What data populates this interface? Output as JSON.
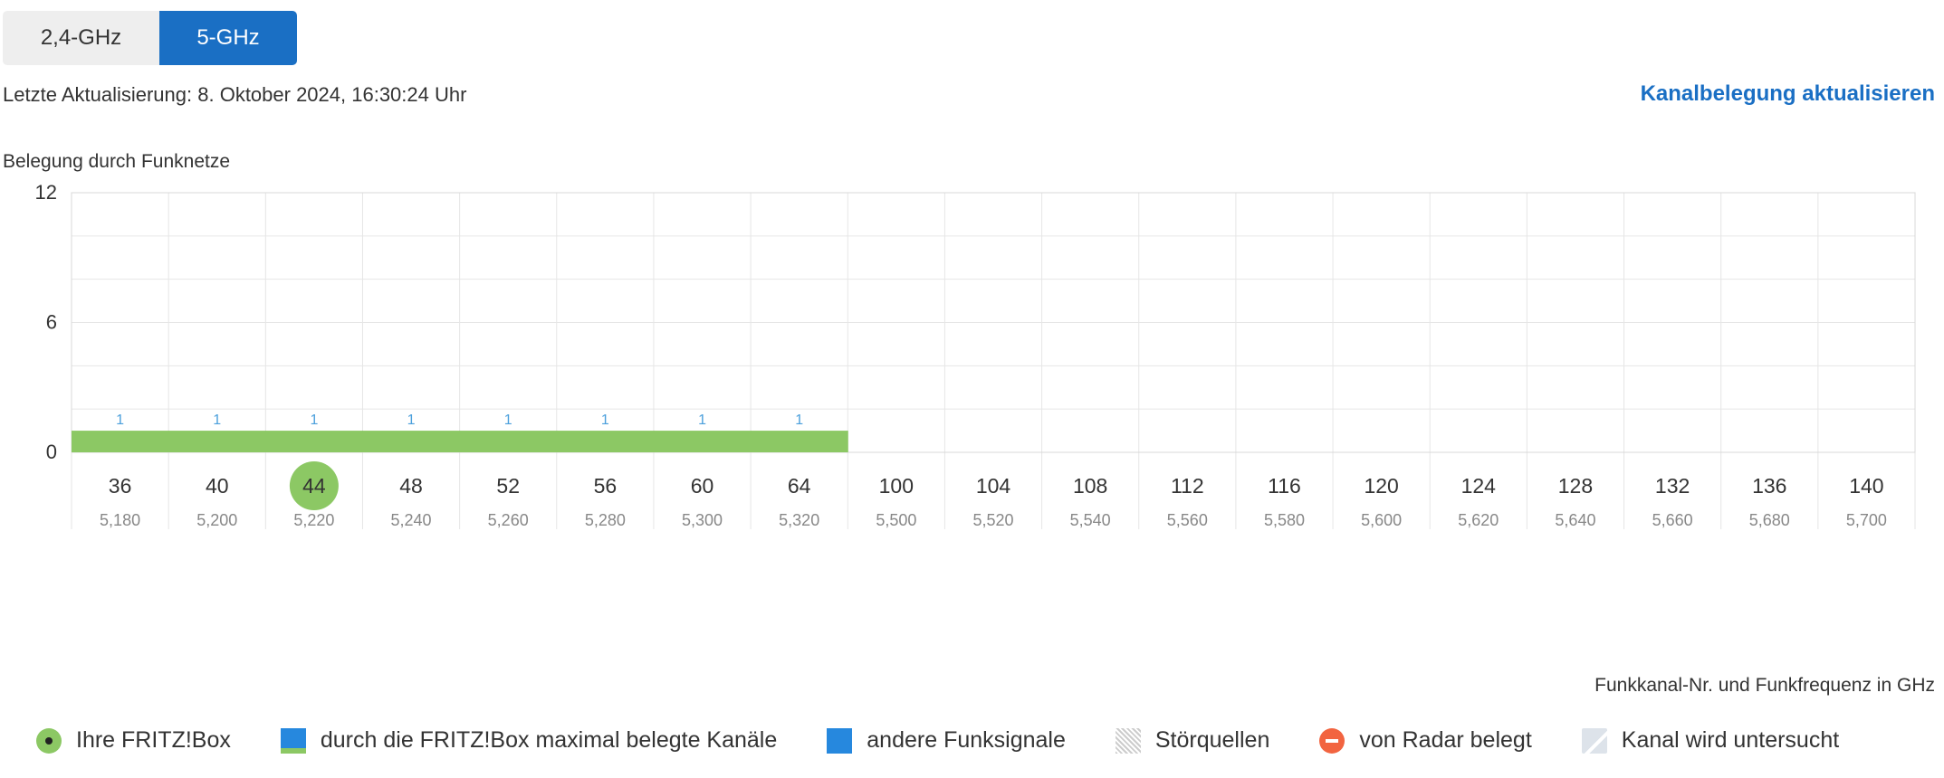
{
  "tabs": [
    {
      "label": "2,4-GHz",
      "active": false
    },
    {
      "label": "5-GHz",
      "active": true
    }
  ],
  "last_update": "Letzte Aktualisierung: 8. Oktober 2024, 16:30:24 Uhr",
  "refresh_link": "Kanalbelegung aktualisieren",
  "chart_title": "Belegung durch Funknetze",
  "axis_caption": "Funkkanal-Nr. und Funkfrequenz in GHz",
  "chart_data": {
    "type": "bar",
    "ylim": [
      0,
      12
    ],
    "yticks": [
      "12",
      "6",
      "0"
    ],
    "grid": true,
    "channels": [
      "36",
      "40",
      "44",
      "48",
      "52",
      "56",
      "60",
      "64",
      "100",
      "104",
      "108",
      "112",
      "116",
      "120",
      "124",
      "128",
      "132",
      "136",
      "140"
    ],
    "frequencies": [
      "5,180",
      "5,200",
      "5,220",
      "5,240",
      "5,260",
      "5,280",
      "5,300",
      "5,320",
      "5,500",
      "5,520",
      "5,540",
      "5,560",
      "5,580",
      "5,600",
      "5,620",
      "5,640",
      "5,660",
      "5,680",
      "5,700"
    ],
    "fritzbox_occupied": [
      1,
      1,
      1,
      1,
      1,
      1,
      1,
      1,
      0,
      0,
      0,
      0,
      0,
      0,
      0,
      0,
      0,
      0,
      0
    ],
    "value_labels": [
      "1",
      "1",
      "1",
      "1",
      "1",
      "1",
      "1",
      "1",
      "",
      "",
      "",
      "",
      "",
      "",
      "",
      "",
      "",
      "",
      ""
    ],
    "fritzbox_channel": "44",
    "colors": {
      "fritzbox": "#8cc864",
      "other": "#2688de",
      "value_label": "#4a9fdc",
      "accent": "#1a6fc4",
      "radar": "#f26440"
    }
  },
  "legend": [
    {
      "label": "Ihre FRITZ!Box",
      "icon": "fritzbox-dot-icon"
    },
    {
      "label": "durch die FRITZ!Box maximal belegte Kanäle",
      "icon": "max-channels-icon"
    },
    {
      "label": "andere Funksignale",
      "icon": "other-signals-icon"
    },
    {
      "label": "Störquellen",
      "icon": "interference-icon"
    },
    {
      "label": "von Radar belegt",
      "icon": "radar-icon"
    },
    {
      "label": "Kanal wird untersucht",
      "icon": "channel-scan-icon"
    }
  ]
}
